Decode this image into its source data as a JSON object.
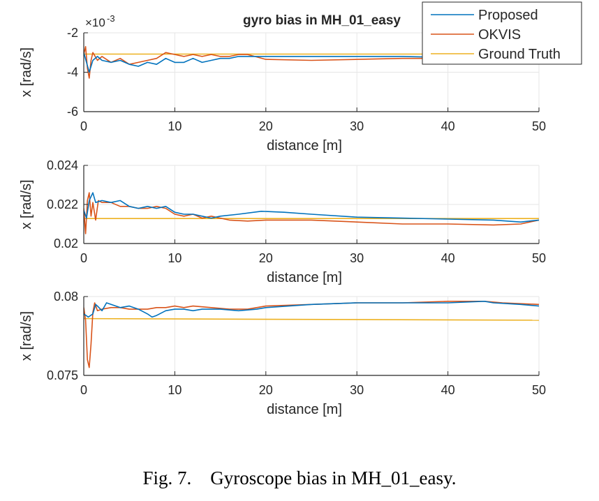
{
  "caption": "Fig. 7.    Gyroscope bias in MH_01_easy.",
  "chart_data": [
    {
      "type": "line",
      "title": "gyro bias in MH_01_easy",
      "xlabel": "distance [m]",
      "ylabel": "x [rad/s]",
      "xlim": [
        0,
        50
      ],
      "ylim": [
        -6,
        -2
      ],
      "y_multiplier": "×10^-3",
      "y_multiplier_base": "×10",
      "y_multiplier_exp": "-3",
      "xticks": [
        0,
        10,
        20,
        30,
        40,
        50
      ],
      "xtick_labels": [
        "0",
        "10",
        "20",
        "30",
        "40",
        "50"
      ],
      "yticks": [
        -6,
        -4,
        -2
      ],
      "ytick_labels": [
        "-6",
        "-4",
        "-2"
      ],
      "grid": true,
      "legend": "top-right",
      "series": [
        {
          "name": "Proposed",
          "color": "#0072BD",
          "x": [
            0,
            0.3,
            0.6,
            1,
            1.5,
            2,
            3,
            4,
            5,
            6,
            7,
            8,
            9,
            10,
            11,
            12,
            13,
            14,
            15,
            16,
            17,
            18,
            20,
            25,
            30,
            35,
            40,
            45,
            50
          ],
          "y": [
            -3.0,
            -3.5,
            -4.0,
            -3.4,
            -3.2,
            -3.4,
            -3.5,
            -3.4,
            -3.6,
            -3.7,
            -3.5,
            -3.6,
            -3.3,
            -3.5,
            -3.5,
            -3.3,
            -3.5,
            -3.4,
            -3.3,
            -3.3,
            -3.2,
            -3.2,
            -3.2,
            -3.2,
            -3.2,
            -3.2,
            -3.25,
            -3.2,
            -3.2
          ]
        },
        {
          "name": "OKVIS",
          "color": "#D95319",
          "x": [
            0,
            0.2,
            0.4,
            0.6,
            0.8,
            1,
            1.5,
            2,
            3,
            4,
            5,
            6,
            7,
            8,
            9,
            10,
            11,
            12,
            13,
            14,
            15,
            16,
            17,
            18,
            20,
            25,
            30,
            35,
            40,
            45,
            50
          ],
          "y": [
            -3.1,
            -2.7,
            -3.8,
            -4.3,
            -3.4,
            -3.0,
            -3.4,
            -3.2,
            -3.5,
            -3.3,
            -3.6,
            -3.5,
            -3.4,
            -3.3,
            -3.0,
            -3.1,
            -3.2,
            -3.1,
            -3.2,
            -3.1,
            -3.2,
            -3.2,
            -3.1,
            -3.1,
            -3.35,
            -3.4,
            -3.35,
            -3.3,
            -3.3,
            -3.25,
            -3.25
          ]
        },
        {
          "name": "Ground Truth",
          "color": "#EDB120",
          "x": [
            0,
            50
          ],
          "y": [
            -3.08,
            -3.08
          ]
        }
      ]
    },
    {
      "type": "line",
      "title": "",
      "xlabel": "distance [m]",
      "ylabel": "x [rad/s]",
      "xlim": [
        0,
        50
      ],
      "ylim": [
        0.02,
        0.024
      ],
      "xticks": [
        0,
        10,
        20,
        30,
        40,
        50
      ],
      "xtick_labels": [
        "0",
        "10",
        "20",
        "30",
        "40",
        "50"
      ],
      "yticks": [
        0.02,
        0.022,
        0.024
      ],
      "ytick_labels": [
        "0.02",
        "0.022",
        "0.024"
      ],
      "grid": true,
      "series": [
        {
          "name": "Proposed",
          "color": "#0072BD",
          "x": [
            0,
            0.3,
            0.6,
            1,
            1.3,
            2,
            3,
            4,
            5,
            6,
            7,
            8,
            9,
            10,
            11,
            12,
            13,
            14,
            15,
            17,
            19.5,
            22,
            25,
            30,
            35,
            40,
            45,
            48,
            50
          ],
          "y": [
            0.0217,
            0.0213,
            0.0222,
            0.0226,
            0.0221,
            0.0222,
            0.0221,
            0.0222,
            0.0219,
            0.0218,
            0.0219,
            0.0218,
            0.0219,
            0.0216,
            0.0215,
            0.0215,
            0.0214,
            0.0213,
            0.0214,
            0.0215,
            0.02165,
            0.0216,
            0.0215,
            0.02135,
            0.0213,
            0.02125,
            0.0212,
            0.0211,
            0.0212
          ]
        },
        {
          "name": "OKVIS",
          "color": "#D95319",
          "x": [
            0,
            0.2,
            0.4,
            0.6,
            0.8,
            1,
            1.3,
            1.6,
            2,
            3,
            4,
            5,
            6,
            7,
            8,
            9,
            10,
            11,
            12,
            13,
            14,
            15,
            16,
            18,
            20,
            25,
            30,
            35,
            40,
            45,
            48,
            50
          ],
          "y": [
            0.0218,
            0.0205,
            0.0222,
            0.0226,
            0.0214,
            0.0221,
            0.0212,
            0.0222,
            0.0221,
            0.0221,
            0.0219,
            0.0219,
            0.0218,
            0.0218,
            0.0219,
            0.0218,
            0.0215,
            0.0214,
            0.0215,
            0.0213,
            0.0214,
            0.0213,
            0.0212,
            0.02115,
            0.0212,
            0.0212,
            0.0211,
            0.021,
            0.021,
            0.02095,
            0.021,
            0.0212
          ]
        },
        {
          "name": "Ground Truth",
          "color": "#EDB120",
          "x": [
            0,
            50
          ],
          "y": [
            0.02128,
            0.02128
          ]
        }
      ]
    },
    {
      "type": "line",
      "title": "",
      "xlabel": "distance [m]",
      "ylabel": "x [rad/s]",
      "xlim": [
        0,
        50
      ],
      "ylim": [
        0.075,
        0.08
      ],
      "xticks": [
        0,
        10,
        20,
        30,
        40,
        50
      ],
      "xtick_labels": [
        "0",
        "10",
        "20",
        "30",
        "40",
        "50"
      ],
      "yticks": [
        0.075,
        0.08
      ],
      "ytick_labels": [
        "0.075",
        "0.08"
      ],
      "grid": true,
      "series": [
        {
          "name": "Proposed",
          "color": "#0072BD",
          "x": [
            0,
            0.5,
            1,
            1.3,
            1.5,
            2,
            2.5,
            3,
            4,
            5,
            6,
            7,
            7.5,
            8,
            9,
            10,
            11,
            12,
            13,
            15,
            17,
            19,
            20,
            25,
            30,
            35,
            40,
            44,
            45,
            48,
            50
          ],
          "y": [
            0.0789,
            0.0787,
            0.0789,
            0.0795,
            0.0794,
            0.0791,
            0.0796,
            0.0795,
            0.0793,
            0.0794,
            0.0792,
            0.0789,
            0.0787,
            0.0788,
            0.0791,
            0.0792,
            0.0792,
            0.0791,
            0.0792,
            0.0792,
            0.0791,
            0.0792,
            0.0793,
            0.0795,
            0.0796,
            0.0796,
            0.0796,
            0.0797,
            0.0796,
            0.0795,
            0.0794
          ]
        },
        {
          "name": "OKVIS",
          "color": "#D95319",
          "x": [
            0,
            0.2,
            0.4,
            0.6,
            0.8,
            1,
            1.2,
            1.5,
            2,
            3,
            4,
            5,
            6,
            7,
            8,
            9,
            10,
            11,
            12,
            14,
            16,
            18,
            20,
            25,
            30,
            35,
            40,
            44,
            46,
            50
          ],
          "y": [
            0.0793,
            0.0785,
            0.076,
            0.0755,
            0.077,
            0.079,
            0.0796,
            0.0791,
            0.0792,
            0.0793,
            0.0793,
            0.0792,
            0.0792,
            0.0792,
            0.0793,
            0.0793,
            0.0794,
            0.0793,
            0.0794,
            0.0793,
            0.0792,
            0.0792,
            0.0794,
            0.0795,
            0.0796,
            0.0796,
            0.0797,
            0.0797,
            0.0796,
            0.0795
          ]
        },
        {
          "name": "Ground Truth",
          "color": "#EDB120",
          "x": [
            0,
            50
          ],
          "y": [
            0.0786,
            0.0785
          ]
        }
      ]
    }
  ]
}
